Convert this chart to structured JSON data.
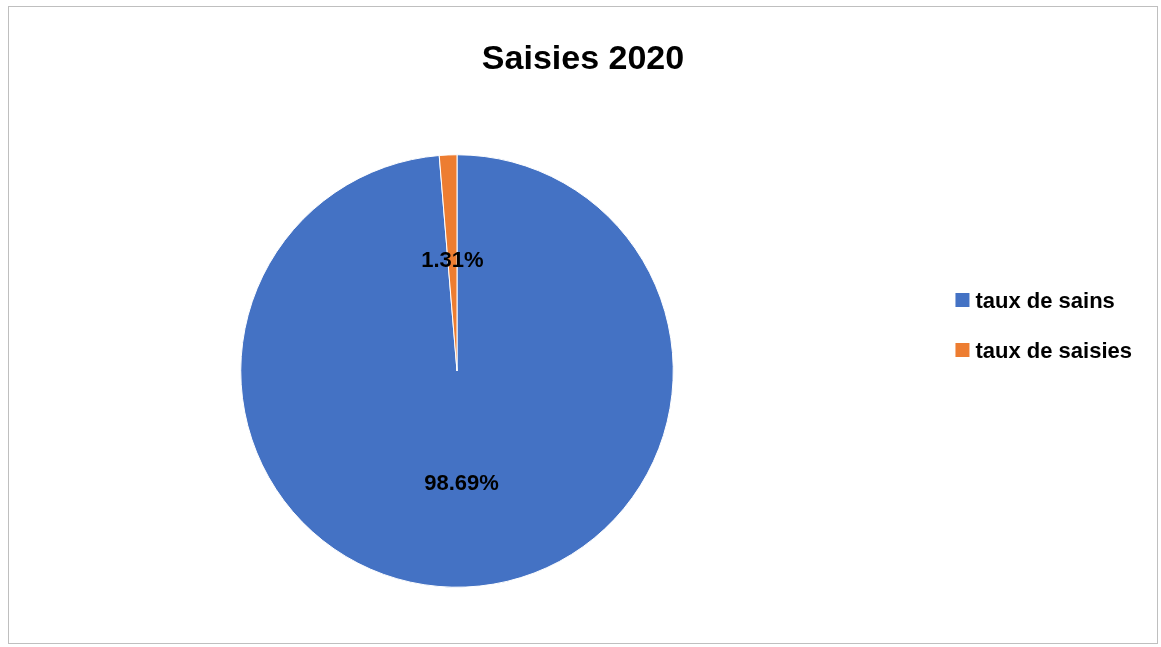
{
  "chart_data": {
    "type": "pie",
    "title": "Saisies 2020",
    "categories": [
      "taux de sains",
      "taux de saisies"
    ],
    "values": [
      98.69,
      1.31
    ],
    "colors": [
      "#4472c4",
      "#ed7d31"
    ],
    "value_labels": [
      "98.69%",
      "1.31%"
    ],
    "legend": "right"
  }
}
